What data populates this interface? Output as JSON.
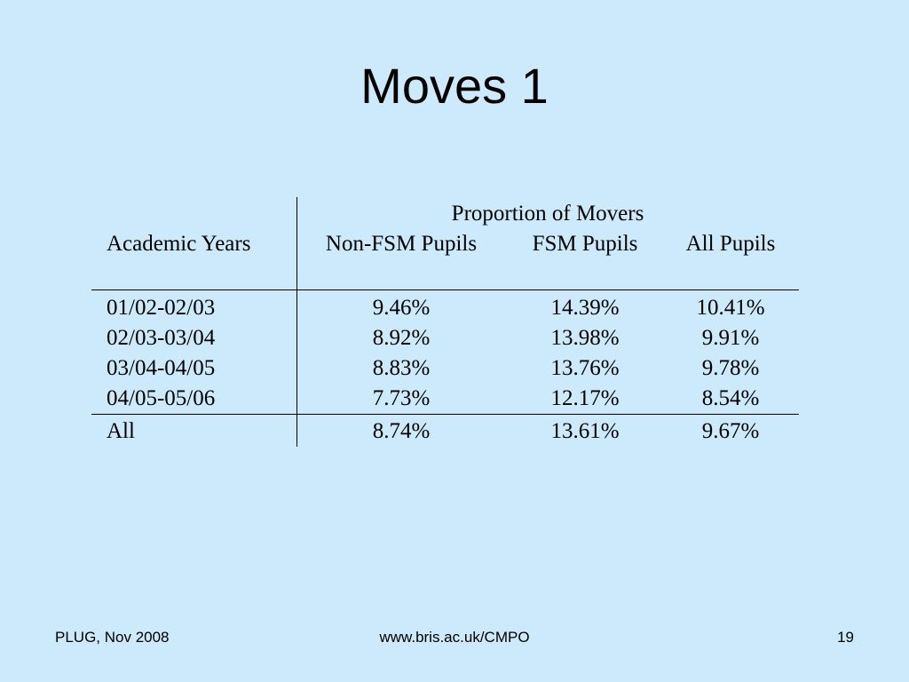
{
  "title": "Moves 1",
  "table": {
    "group_header": "Proportion of Movers",
    "columns": [
      "Academic Years",
      "Non-FSM Pupils",
      "FSM Pupils",
      "All Pupils"
    ],
    "rows": [
      [
        "01/02-02/03",
        "9.46%",
        "14.39%",
        "10.41%"
      ],
      [
        "02/03-03/04",
        "8.92%",
        "13.98%",
        "9.91%"
      ],
      [
        "03/04-04/05",
        "8.83%",
        "13.76%",
        "9.78%"
      ],
      [
        "04/05-05/06",
        "7.73%",
        "12.17%",
        "8.54%"
      ]
    ],
    "total": [
      "All",
      "8.74%",
      "13.61%",
      "9.67%"
    ]
  },
  "footer": {
    "left": "PLUG, Nov 2008",
    "center": "www.bris.ac.uk/CMPO",
    "right": "19"
  }
}
